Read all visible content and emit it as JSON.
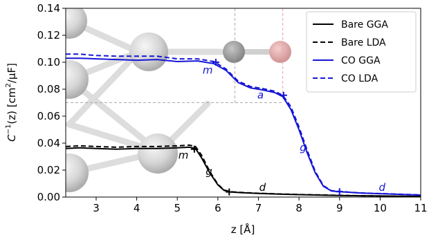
{
  "chart_data": {
    "type": "line",
    "title": "",
    "xlabel": "z [Å]",
    "ylabel_parts": {
      "sym": "C",
      "sup": "−1",
      "rest": "(z) [cm",
      "unit_sup": "2",
      "end": "/μF]"
    },
    "xlim": [
      2.25,
      11
    ],
    "ylim": [
      0,
      0.14
    ],
    "xticks": [
      "3",
      "4",
      "5",
      "6",
      "7",
      "8",
      "9",
      "10",
      "11"
    ],
    "yticks": [
      "0.00",
      "0.02",
      "0.04",
      "0.06",
      "0.08",
      "0.10",
      "0.12",
      "0.14"
    ],
    "grid": false,
    "legend_position": "top-right",
    "colors": {
      "bare": "#000000",
      "co": "#1515d6",
      "guide_grey": "#aaaaaa",
      "guide_red": "#e8a0a0"
    },
    "series": [
      {
        "name": "Bare GGA",
        "color": "#000000",
        "style": "solid",
        "x": [
          2.25,
          2.6,
          3.0,
          3.5,
          4.0,
          4.5,
          5.0,
          5.3,
          5.45,
          5.6,
          5.8,
          6.0,
          6.15,
          6.3,
          6.6,
          7.0,
          7.5,
          8.0,
          8.5,
          9.0,
          9.5,
          10.0,
          10.5,
          11.0
        ],
        "y": [
          0.036,
          0.0365,
          0.036,
          0.0355,
          0.036,
          0.036,
          0.0365,
          0.037,
          0.036,
          0.029,
          0.018,
          0.009,
          0.005,
          0.0038,
          0.0032,
          0.0027,
          0.0022,
          0.0018,
          0.0015,
          0.0012,
          0.001,
          0.0008,
          0.0006,
          0.0005
        ]
      },
      {
        "name": "Bare LDA",
        "color": "#000000",
        "style": "dashed",
        "x": [
          2.25,
          2.6,
          3.0,
          3.5,
          4.0,
          4.5,
          5.0,
          5.3,
          5.45,
          5.6,
          5.8,
          6.0,
          6.15,
          6.3,
          6.6,
          7.0,
          7.5,
          8.0,
          8.5,
          9.0,
          9.5,
          10.0,
          10.5,
          11.0
        ],
        "y": [
          0.0375,
          0.038,
          0.0375,
          0.037,
          0.0375,
          0.0375,
          0.038,
          0.0385,
          0.0375,
          0.031,
          0.019,
          0.0095,
          0.0053,
          0.004,
          0.0034,
          0.0028,
          0.0023,
          0.0019,
          0.0016,
          0.0013,
          0.001,
          0.0008,
          0.0006,
          0.0005
        ]
      },
      {
        "name": "CO GGA",
        "color": "#1515d6",
        "style": "solid",
        "x": [
          2.25,
          2.6,
          3.0,
          3.5,
          4.0,
          4.5,
          5.0,
          5.5,
          5.9,
          6.2,
          6.5,
          6.8,
          7.1,
          7.4,
          7.6,
          7.8,
          8.0,
          8.2,
          8.4,
          8.6,
          8.8,
          9.0,
          9.5,
          10.0,
          10.5,
          11.0
        ],
        "y": [
          0.103,
          0.103,
          0.1025,
          0.102,
          0.1015,
          0.102,
          0.1005,
          0.101,
          0.099,
          0.094,
          0.085,
          0.081,
          0.0795,
          0.0775,
          0.0745,
          0.065,
          0.05,
          0.033,
          0.018,
          0.008,
          0.0045,
          0.004,
          0.003,
          0.0025,
          0.002,
          0.0015
        ]
      },
      {
        "name": "CO LDA",
        "color": "#1515d6",
        "style": "dashed",
        "x": [
          2.25,
          2.6,
          3.0,
          3.5,
          4.0,
          4.5,
          5.0,
          5.5,
          5.9,
          6.2,
          6.5,
          6.8,
          7.1,
          7.4,
          7.6,
          7.8,
          8.0,
          8.2,
          8.4,
          8.6,
          8.8,
          9.0,
          9.5,
          10.0,
          10.5,
          11.0
        ],
        "y": [
          0.106,
          0.106,
          0.105,
          0.1045,
          0.1045,
          0.1045,
          0.1025,
          0.1025,
          0.1005,
          0.095,
          0.086,
          0.082,
          0.0805,
          0.0785,
          0.0755,
          0.067,
          0.052,
          0.035,
          0.019,
          0.0085,
          0.0047,
          0.0042,
          0.0031,
          0.0026,
          0.0021,
          0.0016
        ]
      }
    ],
    "markers": [
      {
        "x": 5.42,
        "y": 0.0355,
        "color": "#000000"
      },
      {
        "x": 6.28,
        "y": 0.0038,
        "color": "#000000"
      },
      {
        "x": 5.95,
        "y": 0.1,
        "color": "#1515d6"
      },
      {
        "x": 7.62,
        "y": 0.0755,
        "color": "#1515d6"
      },
      {
        "x": 9.0,
        "y": 0.004,
        "color": "#1515d6"
      }
    ],
    "annotations": [
      {
        "text": "m",
        "x": 5.15,
        "y": 0.0285,
        "color": "#000000"
      },
      {
        "text": "g",
        "x": 5.78,
        "y": 0.0165,
        "color": "#000000"
      },
      {
        "text": "d",
        "x": 7.1,
        "y": 0.0045,
        "color": "#000000"
      },
      {
        "text": "m",
        "x": 5.75,
        "y": 0.0915,
        "color": "#1515d6"
      },
      {
        "text": "a",
        "x": 7.05,
        "y": 0.073,
        "color": "#1515d6"
      },
      {
        "text": "g",
        "x": 8.1,
        "y": 0.034,
        "color": "#1515d6"
      },
      {
        "text": "d",
        "x": 10.05,
        "y": 0.0045,
        "color": "#1515d6"
      }
    ],
    "guide_lines": {
      "horizontal": {
        "y": 0.07,
        "x_from": 2.25,
        "x_to": 7.6
      },
      "vertical_grey": 6.42,
      "vertical_red": 7.6
    }
  }
}
